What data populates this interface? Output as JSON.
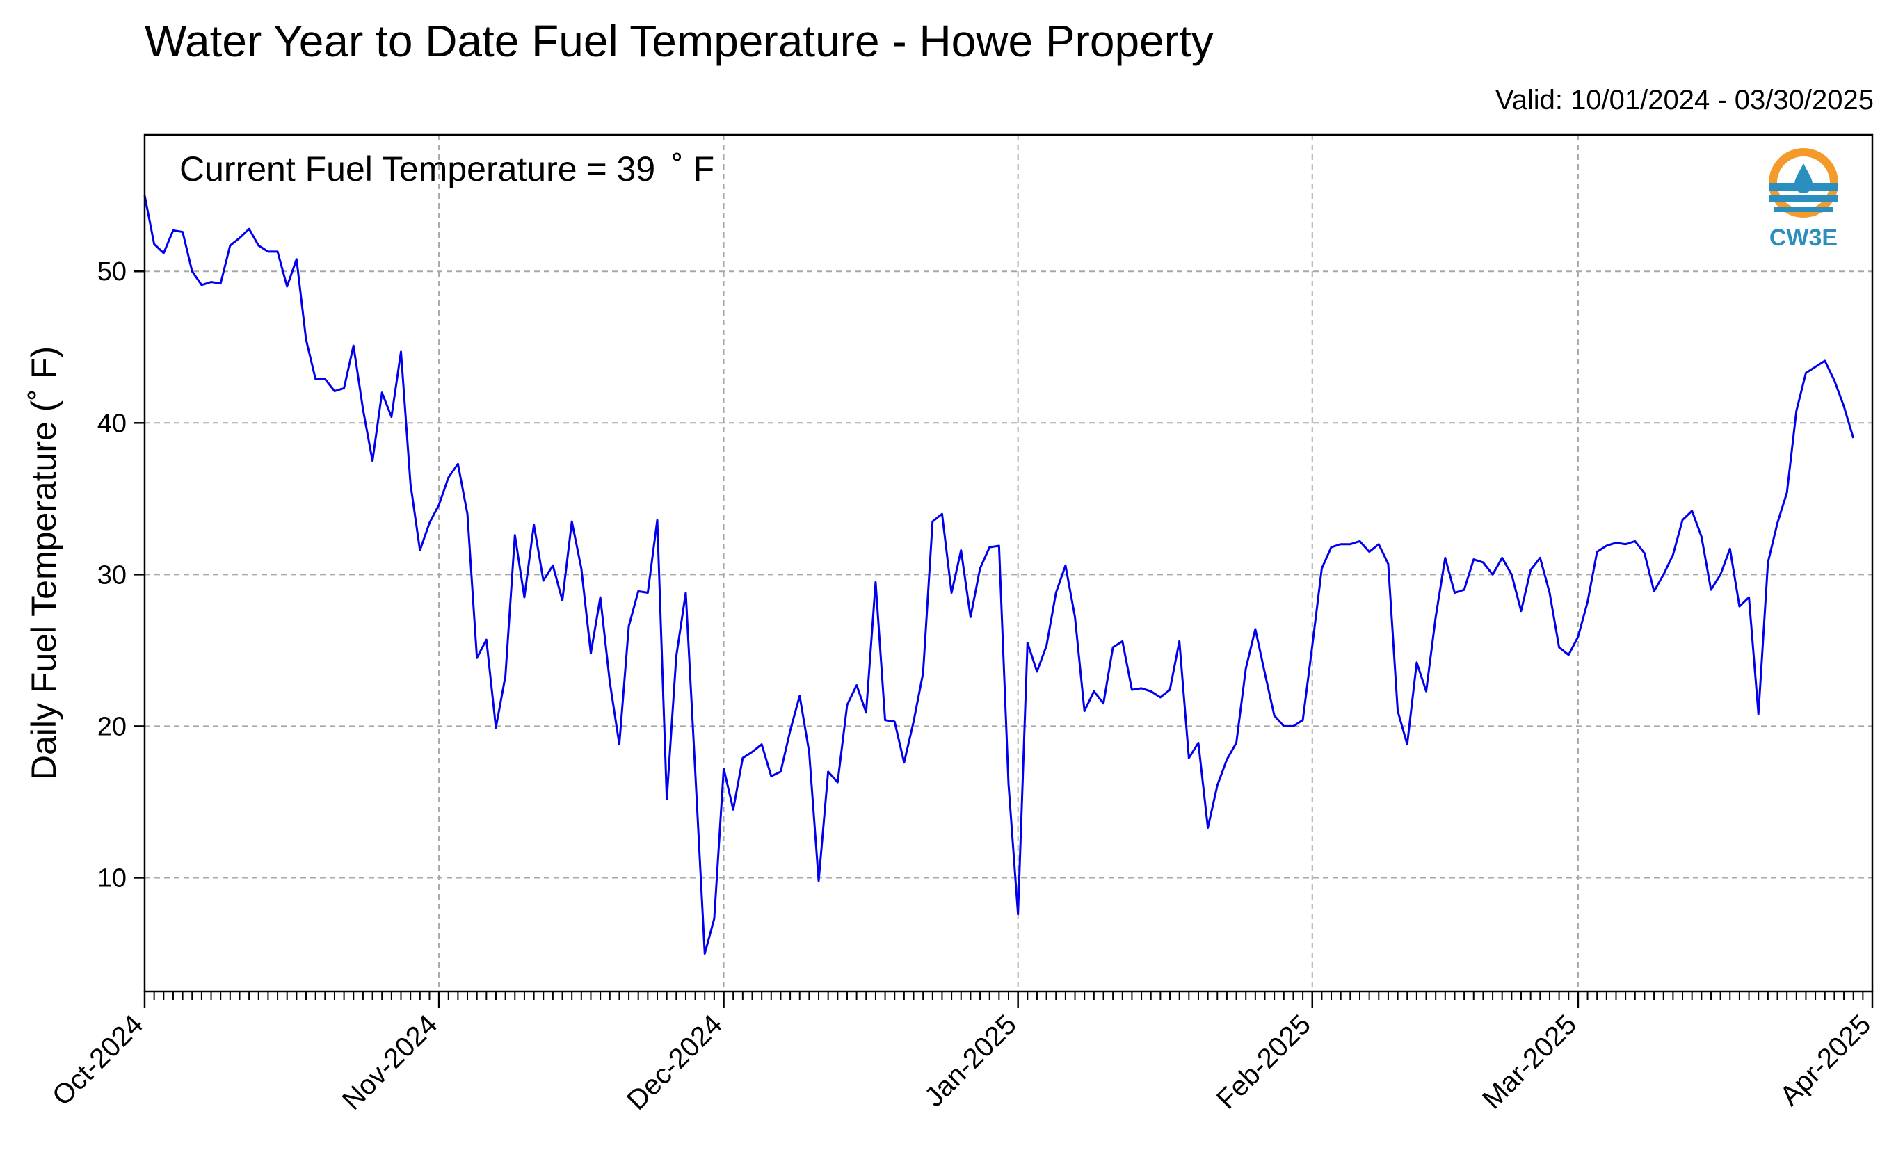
{
  "title": "Water Year to Date Fuel Temperature - Howe Property",
  "valid": "Valid: 10/01/2024 - 03/30/2025",
  "current_label": "Current Fuel Temperature = 39  ˚ F",
  "logo_text": "CW3E",
  "colors": {
    "line": "#0000ee",
    "grid": "#a8a8a8",
    "logo_orange": "#f39a2a",
    "logo_blue": "#2a8fbf"
  },
  "chart_data": {
    "type": "line",
    "title": "Water Year to Date Fuel Temperature - Howe Property",
    "ylabel": "Daily Fuel Temperature (˚ F)",
    "xlabel": "",
    "ylim": [
      2.5,
      59
    ],
    "xlim": [
      "2024-10-01",
      "2025-04-01"
    ],
    "yticks": [
      10,
      20,
      30,
      40,
      50
    ],
    "xticks": [
      {
        "date": "2024-10-01",
        "label": "Oct-2024"
      },
      {
        "date": "2024-11-01",
        "label": "Nov-2024"
      },
      {
        "date": "2024-12-01",
        "label": "Dec-2024"
      },
      {
        "date": "2025-01-01",
        "label": "Jan-2025"
      },
      {
        "date": "2025-02-01",
        "label": "Feb-2025"
      },
      {
        "date": "2025-03-01",
        "label": "Mar-2025"
      },
      {
        "date": "2025-04-01",
        "label": "Apr-2025"
      }
    ],
    "grid": true,
    "start_date": "2024-10-01",
    "series": [
      {
        "values": [
          55,
          51.8,
          51.2,
          52.7,
          52.6,
          50,
          49.1,
          49.3,
          49.2,
          51.7,
          52.2,
          52.8,
          51.7,
          51.3,
          51.3,
          49,
          50.8,
          45.5,
          42.9,
          42.9,
          42.1,
          42.3,
          45.1,
          40.9,
          37.5,
          42,
          40.4,
          44.7,
          36,
          31.6,
          33.4,
          34.6,
          36.4,
          37.3,
          34,
          24.5,
          25.7,
          19.9,
          23.3,
          32.6,
          28.5,
          33.3,
          29.6,
          30.6,
          28.3,
          33.5,
          30.4,
          24.8,
          28.5,
          22.9,
          18.8,
          26.6,
          28.9,
          28.8,
          33.6,
          15.2,
          24.6,
          28.8,
          17,
          5,
          7.3,
          17.2,
          14.5,
          17.9,
          18.3,
          18.8,
          16.7,
          17,
          19.7,
          22,
          18.3,
          9.8,
          17,
          16.3,
          21.4,
          22.7,
          20.9,
          29.5,
          20.4,
          20.3,
          17.6,
          20.3,
          23.5,
          33.5,
          34,
          28.8,
          31.6,
          27.2,
          30.4,
          31.8,
          31.9,
          16.2,
          7.6,
          25.5,
          23.6,
          25.3,
          28.8,
          30.6,
          27.2,
          21,
          22.3,
          21.5,
          25.2,
          25.6,
          22.4,
          22.5,
          22.3,
          21.9,
          22.4,
          25.6,
          17.9,
          18.9,
          13.3,
          16.1,
          17.8,
          18.9,
          23.8,
          26.4,
          23.5,
          20.7,
          20,
          20,
          20.4,
          25.3,
          30.4,
          31.8,
          32,
          32,
          32.2,
          31.5,
          32,
          30.7,
          21,
          18.8,
          24.2,
          22.3,
          27.2,
          31.1,
          28.8,
          29,
          31,
          30.8,
          30,
          31.1,
          30,
          27.6,
          30.3,
          31.1,
          28.8,
          25.2,
          24.7,
          25.9,
          28.2,
          31.5,
          31.9,
          32.1,
          32,
          32.2,
          31.4,
          28.9,
          30,
          31.3,
          33.6,
          34.2,
          32.5,
          29,
          30,
          31.7,
          27.9,
          28.5,
          20.8,
          30.8,
          33.4,
          35.4,
          40.8,
          43.3,
          43.7,
          44.1,
          42.8,
          41.1,
          39
        ]
      }
    ]
  }
}
